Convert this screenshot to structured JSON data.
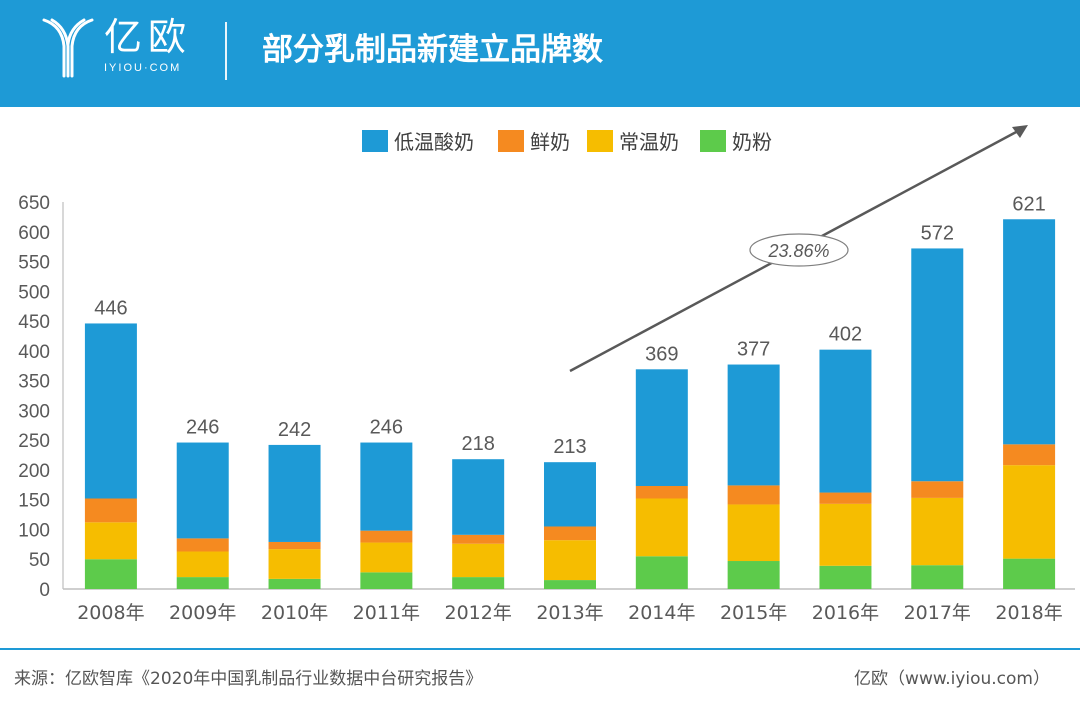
{
  "header": {
    "logo_cn": "亿欧",
    "logo_en": "IYIOU·COM",
    "title": "部分乳制品新建立品牌数"
  },
  "footer": {
    "source": "来源：亿欧智库《2020年中国乳制品行业数据中台研究报告》",
    "brand": "亿欧（www.iyiou.com）"
  },
  "colors": {
    "header_bg": "#1e9ad6",
    "low_temp_yogurt": "#1e9ad6",
    "fresh_milk": "#f58a20",
    "room_temp_milk": "#f6bd00",
    "milk_powder": "#5dcb4b",
    "trend_arrow": "#595959"
  },
  "chart_data": {
    "type": "bar",
    "stacked": true,
    "categories": [
      "2008年",
      "2009年",
      "2010年",
      "2011年",
      "2012年",
      "2013年",
      "2014年",
      "2015年",
      "2016年",
      "2017年",
      "2018年"
    ],
    "series": [
      {
        "name": "奶粉",
        "color": "#5dcb4b",
        "values": [
          50,
          20,
          17,
          28,
          20,
          15,
          55,
          47,
          39,
          40,
          51
        ]
      },
      {
        "name": "常温奶",
        "color": "#f6bd00",
        "values": [
          62,
          43,
          50,
          50,
          56,
          67,
          97,
          95,
          104,
          113,
          157
        ]
      },
      {
        "name": "鲜奶",
        "color": "#f58a20",
        "values": [
          40,
          22,
          12,
          20,
          15,
          23,
          21,
          32,
          19,
          28,
          35
        ]
      },
      {
        "name": "低温酸奶",
        "color": "#1e9ad6",
        "values": [
          294,
          161,
          163,
          148,
          127,
          108,
          196,
          203,
          240,
          391,
          378
        ]
      }
    ],
    "totals": [
      446,
      246,
      242,
      246,
      218,
      213,
      369,
      377,
      402,
      572,
      621
    ],
    "legend_order": [
      "低温酸奶",
      "鲜奶",
      "常温奶",
      "奶粉"
    ],
    "legend_position": "top-right",
    "ylim": [
      0,
      650
    ],
    "yticks": [
      0,
      50,
      100,
      150,
      200,
      250,
      300,
      350,
      400,
      450,
      500,
      550,
      600,
      650
    ],
    "grid": false,
    "annotation": "23.86%",
    "title": "",
    "xlabel": "",
    "ylabel": ""
  }
}
